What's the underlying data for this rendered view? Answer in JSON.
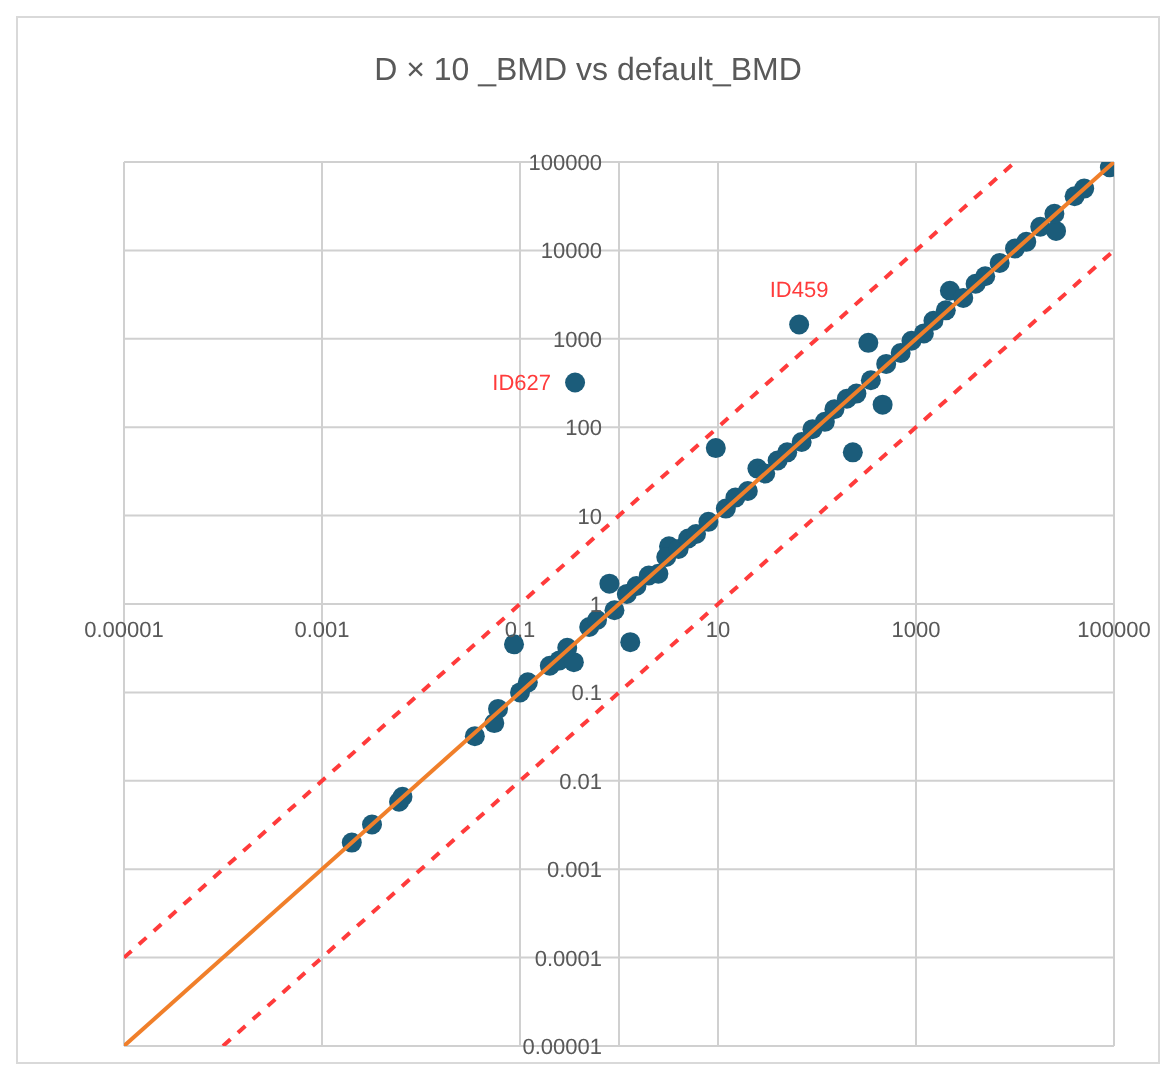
{
  "chart_data": {
    "type": "scatter",
    "title": "D × 10 _BMD vs default_BMD",
    "log": "xy",
    "grid": true,
    "xlim": [
      1e-05,
      100000
    ],
    "xticks": [
      {
        "value": 1e-05,
        "label": "0.00001"
      },
      0.001,
      0.1,
      {
        "value": 1,
        "label": null
      },
      10,
      1000,
      100000
    ],
    "ylim": [
      1e-05,
      100000
    ],
    "yticks": [
      {
        "value": 1e-05,
        "label": "0.00001"
      },
      0.0001,
      0.001,
      0.01,
      0.1,
      1,
      10,
      100,
      1000,
      10000,
      100000
    ],
    "annotations": [
      {
        "text": "ID459",
        "x": 66,
        "y": 1450
      },
      {
        "text": "ID627",
        "x": 0.36,
        "y": 320
      }
    ],
    "series": [
      {
        "color": "#1b5c7a",
        "marker": "circle",
        "x": [
          0.002,
          0.0032,
          0.006,
          0.0065,
          0.035,
          0.055,
          0.06,
          0.087,
          0.1,
          0.12,
          0.2,
          0.25,
          0.35,
          0.3,
          0.5,
          0.6,
          0.8,
          0.9,
          1.3,
          1.2,
          1.5,
          2,
          2.5,
          3.2,
          3,
          4,
          5,
          6,
          8,
          9.5,
          0.36,
          12,
          15,
          20,
          25,
          30,
          40,
          50,
          66,
          70,
          90,
          120,
          150,
          200,
          230,
          250,
          330,
          350,
          460,
          500,
          700,
          900,
          1200,
          1500,
          2000,
          2200,
          3000,
          4000,
          5000,
          7000,
          10000,
          13000,
          18000,
          26000,
          25000,
          40000,
          50000,
          91000
        ],
        "values": [
          0.002,
          0.0032,
          0.0058,
          0.0066,
          0.032,
          0.045,
          0.065,
          0.35,
          0.1,
          0.13,
          0.2,
          0.23,
          0.22,
          0.32,
          0.55,
          0.66,
          1.7,
          0.85,
          0.37,
          1.3,
          1.6,
          2.1,
          2.2,
          4.5,
          3.4,
          4.2,
          5.5,
          6.2,
          8.5,
          58,
          320,
          12,
          16,
          19,
          34,
          30,
          42,
          52,
          1450,
          68,
          95,
          115,
          160,
          210,
          52,
          240,
          900,
          340,
          180,
          520,
          690,
          950,
          1150,
          1600,
          2100,
          3500,
          2900,
          4200,
          5100,
          7200,
          10500,
          12500,
          18500,
          16600,
          26000,
          41000,
          50000,
          87000
        ]
      },
      {
        "type": "line",
        "color": "#f07f2a",
        "line_style": "solid",
        "marker": "none",
        "x": [
          1e-05,
          100000
        ],
        "values": [
          1e-05,
          100000
        ]
      },
      {
        "type": "line",
        "color": "#ff3b3b",
        "line_style": "dashed",
        "marker": "none",
        "x": [
          1e-05,
          10000
        ],
        "values": [
          0.0001,
          100000
        ]
      },
      {
        "type": "line",
        "color": "#ff3b3b",
        "line_style": "dashed",
        "marker": "none",
        "x": [
          0.0001,
          100000
        ],
        "values": [
          1e-05,
          10000
        ]
      }
    ]
  }
}
